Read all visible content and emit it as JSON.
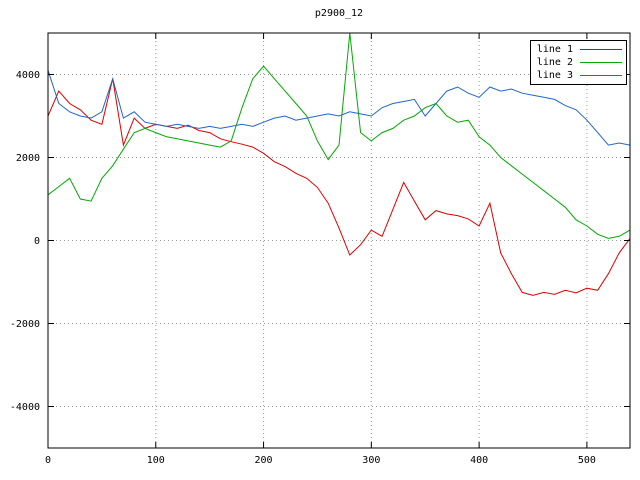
{
  "chart_data": {
    "type": "line",
    "title": "p2900_12",
    "xlabel": "",
    "ylabel": "",
    "xlim": [
      0,
      540
    ],
    "ylim": [
      -5000,
      5000
    ],
    "x_ticks": [
      0,
      100,
      200,
      300,
      400,
      500
    ],
    "y_ticks": [
      -4000,
      -2000,
      0,
      2000,
      4000
    ],
    "grid": true,
    "grid_style": "dotted",
    "legend_position": "top-right",
    "border_color": "#000000",
    "grid_color": "#999999",
    "background_color": "#ffffff",
    "x": [
      0,
      10,
      20,
      30,
      40,
      50,
      60,
      70,
      80,
      90,
      100,
      110,
      120,
      130,
      140,
      150,
      160,
      170,
      180,
      190,
      200,
      210,
      220,
      230,
      240,
      250,
      260,
      270,
      280,
      290,
      300,
      310,
      320,
      330,
      340,
      350,
      360,
      370,
      380,
      390,
      400,
      410,
      420,
      430,
      440,
      450,
      460,
      470,
      480,
      490,
      500,
      510,
      520,
      530,
      540
    ],
    "series": [
      {
        "name": "line 1",
        "color": "#dd0000",
        "values": [
          3000,
          3600,
          3300,
          3150,
          2900,
          2800,
          3900,
          2300,
          2950,
          2700,
          2800,
          2750,
          2700,
          2780,
          2650,
          2600,
          2450,
          2380,
          2320,
          2250,
          2100,
          1900,
          1780,
          1620,
          1500,
          1280,
          900,
          300,
          -350,
          -100,
          250,
          100,
          750,
          1400,
          950,
          500,
          720,
          640,
          600,
          520,
          350,
          900,
          -300,
          -800,
          -1250,
          -1320,
          -1250,
          -1300,
          -1200,
          -1260,
          -1150,
          -1200,
          -800,
          -300,
          50
        ]
      },
      {
        "name": "line 2",
        "color": "#00aa00",
        "values": [
          1100,
          1300,
          1500,
          1000,
          950,
          1500,
          1800,
          2200,
          2600,
          2700,
          2600,
          2500,
          2450,
          2400,
          2350,
          2300,
          2250,
          2400,
          3200,
          3900,
          4200,
          3900,
          3600,
          3300,
          3000,
          2400,
          1950,
          2300,
          5000,
          2600,
          2400,
          2600,
          2700,
          2900,
          3000,
          3200,
          3300,
          3000,
          2850,
          2900,
          2500,
          2300,
          2000,
          1800,
          1600,
          1400,
          1200,
          1000,
          800,
          500,
          350,
          150,
          50,
          100,
          250
        ]
      },
      {
        "name": "line 3",
        "color": "#2266cc",
        "values": [
          4100,
          3300,
          3100,
          3000,
          2950,
          3100,
          3900,
          2950,
          3100,
          2850,
          2800,
          2750,
          2800,
          2750,
          2700,
          2750,
          2700,
          2750,
          2800,
          2750,
          2850,
          2950,
          3000,
          2900,
          2950,
          3000,
          3050,
          3000,
          3100,
          3050,
          3000,
          3200,
          3300,
          3350,
          3400,
          3000,
          3300,
          3600,
          3700,
          3550,
          3450,
          3700,
          3600,
          3650,
          3550,
          3500,
          3450,
          3400,
          3250,
          3150,
          2900,
          2600,
          2300,
          2350,
          2300
        ]
      }
    ]
  }
}
